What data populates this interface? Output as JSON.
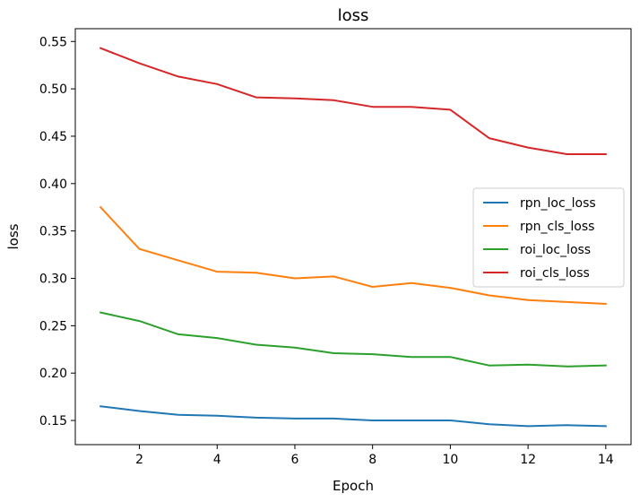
{
  "chart_data": {
    "type": "line",
    "title": "loss",
    "xlabel": "Epoch",
    "ylabel": "loss",
    "xlim": [
      0.35,
      14.65
    ],
    "ylim": [
      0.1245,
      0.5635
    ],
    "xticks": [
      2,
      4,
      6,
      8,
      10,
      12,
      14
    ],
    "yticks": [
      0.15,
      0.2,
      0.25,
      0.3,
      0.35,
      0.4,
      0.45,
      0.5,
      0.55
    ],
    "grid": false,
    "legend_position": "center-right",
    "x": [
      1,
      2,
      3,
      4,
      5,
      6,
      7,
      8,
      9,
      10,
      11,
      12,
      13,
      14
    ],
    "series": [
      {
        "name": "rpn_loc_loss",
        "color": "#1f77b4",
        "values": [
          0.165,
          0.16,
          0.156,
          0.155,
          0.153,
          0.152,
          0.152,
          0.15,
          0.15,
          0.15,
          0.146,
          0.144,
          0.145,
          0.144
        ]
      },
      {
        "name": "rpn_cls_loss",
        "color": "#ff7f0e",
        "values": [
          0.375,
          0.331,
          0.319,
          0.307,
          0.306,
          0.3,
          0.302,
          0.291,
          0.295,
          0.29,
          0.282,
          0.277,
          0.275,
          0.273
        ]
      },
      {
        "name": "roi_loc_loss",
        "color": "#2ca02c",
        "values": [
          0.264,
          0.255,
          0.241,
          0.237,
          0.23,
          0.227,
          0.221,
          0.22,
          0.217,
          0.217,
          0.208,
          0.209,
          0.207,
          0.208
        ]
      },
      {
        "name": "roi_cls_loss",
        "color": "#d62728",
        "values": [
          0.543,
          0.527,
          0.513,
          0.505,
          0.491,
          0.49,
          0.488,
          0.481,
          0.481,
          0.478,
          0.448,
          0.438,
          0.431,
          0.431
        ]
      }
    ]
  }
}
